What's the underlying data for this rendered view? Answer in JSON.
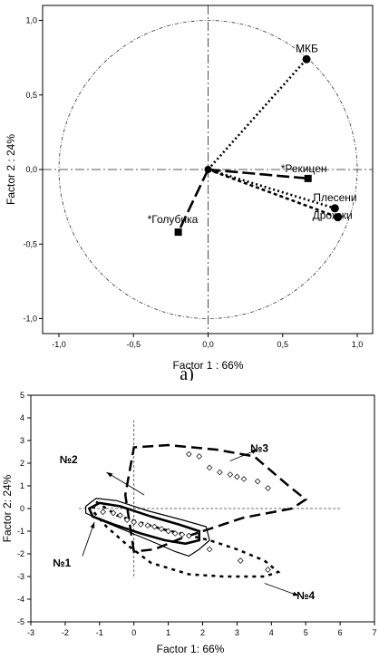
{
  "chart_data": [
    {
      "type": "scatter",
      "title": "",
      "xlabel": "Factor 1 : 66%",
      "ylabel": "Factor 2 : 24%",
      "xlim": [
        -1.0,
        1.0
      ],
      "ylim": [
        -1.0,
        1.0
      ],
      "xticks": [
        "-1,0",
        "-0,5",
        "0,0",
        "0,5",
        "1,0"
      ],
      "yticks": [
        "1,0",
        "0,5",
        "0,0",
        "-0,5",
        "-1,0"
      ],
      "unit_circle": true,
      "points": [
        {
          "label": "МКБ",
          "x": 0.66,
          "y": 0.74,
          "marker": "circle"
        },
        {
          "label": "*Рекицен",
          "x": 0.67,
          "y": -0.06,
          "marker": "square"
        },
        {
          "label": "Плесени",
          "x": 0.85,
          "y": -0.26,
          "marker": "circle"
        },
        {
          "label": "Дрожжи",
          "x": 0.87,
          "y": -0.32,
          "marker": "circle"
        },
        {
          "label": "*Голубика",
          "x": -0.2,
          "y": -0.42,
          "marker": "square"
        }
      ],
      "caption": "a)"
    },
    {
      "type": "scatter",
      "title": "",
      "xlabel": "Factor 1: 66%",
      "ylabel": "Factor 2: 24%",
      "xlim": [
        -3,
        7
      ],
      "ylim": [
        -5,
        5
      ],
      "xticks": [
        "-3",
        "-2",
        "-1",
        "0",
        "1",
        "2",
        "3",
        "4",
        "5",
        "6",
        "7"
      ],
      "yticks": [
        "5",
        "4",
        "3",
        "2",
        "1",
        "0",
        "-1",
        "-2",
        "-3",
        "-4",
        "-5"
      ],
      "groups": [
        "№1",
        "№2",
        "№3",
        "№4"
      ],
      "points": [
        {
          "x": 1.6,
          "y": 2.4
        },
        {
          "x": 1.9,
          "y": 2.3
        },
        {
          "x": 2.2,
          "y": 1.8
        },
        {
          "x": 2.5,
          "y": 1.6
        },
        {
          "x": 2.8,
          "y": 1.5
        },
        {
          "x": 3.0,
          "y": 1.4
        },
        {
          "x": 3.2,
          "y": 1.3
        },
        {
          "x": 3.6,
          "y": 1.2
        },
        {
          "x": 3.9,
          "y": 0.9
        },
        {
          "x": -0.9,
          "y": -0.15
        },
        {
          "x": -0.6,
          "y": -0.2
        },
        {
          "x": -0.4,
          "y": -0.3
        },
        {
          "x": -0.2,
          "y": -0.5
        },
        {
          "x": 0.0,
          "y": -0.6
        },
        {
          "x": 0.2,
          "y": -0.7
        },
        {
          "x": 0.4,
          "y": -0.75
        },
        {
          "x": 0.6,
          "y": -0.8
        },
        {
          "x": 0.8,
          "y": -0.9
        },
        {
          "x": 1.0,
          "y": -1.0
        },
        {
          "x": 1.2,
          "y": -1.1
        },
        {
          "x": 1.4,
          "y": -1.15
        },
        {
          "x": 1.6,
          "y": -1.2
        },
        {
          "x": 2.2,
          "y": -1.8
        },
        {
          "x": 3.1,
          "y": -2.3
        },
        {
          "x": 3.9,
          "y": -2.7
        }
      ]
    }
  ]
}
